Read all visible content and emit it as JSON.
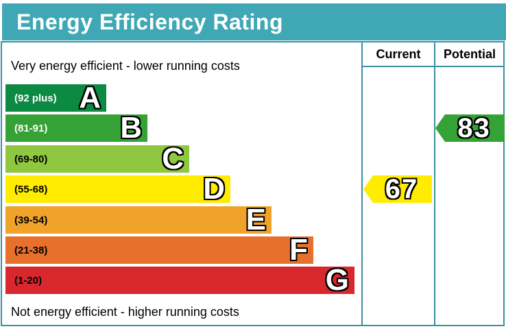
{
  "title": "Energy Efficiency Rating",
  "top_caption": "Very energy efficient - lower running costs",
  "bottom_caption": "Not energy efficient - higher running costs",
  "columns": {
    "current_label": "Current",
    "potential_label": "Potential"
  },
  "colors": {
    "banner_bg": "#3fa8b4",
    "banner_text": "#ffffff",
    "border": "#3a8fa3",
    "background": "#ffffff"
  },
  "chart_data": {
    "type": "bar",
    "title": "Energy Efficiency Rating",
    "orientation": "horizontal",
    "bands": [
      {
        "letter": "A",
        "range_label": "(92 plus)",
        "min": 92,
        "max": 100,
        "color": "#0c8a43",
        "label_color": "#ffffff"
      },
      {
        "letter": "B",
        "range_label": "(81-91)",
        "min": 81,
        "max": 91,
        "color": "#35a235",
        "label_color": "#ffffff"
      },
      {
        "letter": "C",
        "range_label": "(69-80)",
        "min": 69,
        "max": 80,
        "color": "#8fc740",
        "label_color": "#000000"
      },
      {
        "letter": "D",
        "range_label": "(55-68)",
        "min": 55,
        "max": 68,
        "color": "#ffec00",
        "label_color": "#000000"
      },
      {
        "letter": "E",
        "range_label": "(39-54)",
        "min": 39,
        "max": 54,
        "color": "#f0a32b",
        "label_color": "#000000"
      },
      {
        "letter": "F",
        "range_label": "(21-38)",
        "min": 21,
        "max": 38,
        "color": "#e8702d",
        "label_color": "#000000"
      },
      {
        "letter": "G",
        "range_label": "(1-20)",
        "min": 1,
        "max": 20,
        "color": "#d9272e",
        "label_color": "#000000"
      }
    ],
    "markers": {
      "current": {
        "value": "67",
        "band": "D",
        "color": "#ffec00"
      },
      "potential": {
        "value": "83",
        "band": "B",
        "color": "#35a235"
      }
    }
  }
}
